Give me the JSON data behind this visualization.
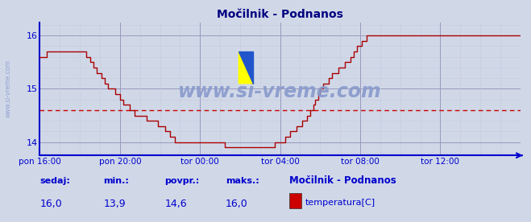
{
  "title": "Močilnik - Podnanos",
  "bg_color": "#d0d8e8",
  "plot_bg_color": "#d0d8e8",
  "line_color": "#aa0000",
  "avg_line_color": "#cc0000",
  "axis_color": "#0000cc",
  "grid_color_major": "#9999bb",
  "grid_color_minor": "#bbbbcc",
  "title_color": "#000080",
  "ylim": [
    13.75,
    16.25
  ],
  "yticks": [
    14,
    15,
    16
  ],
  "avg_value": 14.6,
  "sedaj": "16,0",
  "min_val": "13,9",
  "povpr": "14,6",
  "maks": "16,0",
  "station": "Močilnik - Podnanos",
  "legend_label": "temperatura[C]",
  "legend_color": "#cc0000",
  "watermark": "www.si-vreme.com",
  "watermark_color": "#8899cc",
  "x_tick_labels": [
    "pon 16:00",
    "pon 20:00",
    "tor 00:00",
    "tor 04:00",
    "tor 08:00",
    "tor 12:00"
  ],
  "x_tick_positions": [
    0,
    48,
    96,
    144,
    192,
    240
  ],
  "total_points": 289,
  "temperature_data": [
    15.6,
    15.6,
    15.6,
    15.6,
    15.7,
    15.7,
    15.7,
    15.7,
    15.7,
    15.7,
    15.7,
    15.7,
    15.7,
    15.7,
    15.7,
    15.7,
    15.7,
    15.7,
    15.7,
    15.7,
    15.7,
    15.7,
    15.7,
    15.7,
    15.7,
    15.7,
    15.7,
    15.7,
    15.6,
    15.6,
    15.5,
    15.5,
    15.4,
    15.4,
    15.3,
    15.3,
    15.3,
    15.2,
    15.2,
    15.1,
    15.1,
    15.0,
    15.0,
    15.0,
    15.0,
    14.9,
    14.9,
    14.9,
    14.8,
    14.8,
    14.7,
    14.7,
    14.7,
    14.7,
    14.6,
    14.6,
    14.6,
    14.5,
    14.5,
    14.5,
    14.5,
    14.5,
    14.5,
    14.5,
    14.4,
    14.4,
    14.4,
    14.4,
    14.4,
    14.4,
    14.4,
    14.3,
    14.3,
    14.3,
    14.3,
    14.2,
    14.2,
    14.2,
    14.1,
    14.1,
    14.1,
    14.0,
    14.0,
    14.0,
    14.0,
    14.0,
    14.0,
    14.0,
    14.0,
    14.0,
    14.0,
    14.0,
    14.0,
    14.0,
    14.0,
    14.0,
    14.0,
    14.0,
    14.0,
    14.0,
    14.0,
    14.0,
    14.0,
    14.0,
    14.0,
    14.0,
    14.0,
    14.0,
    14.0,
    14.0,
    14.0,
    13.9,
    13.9,
    13.9,
    13.9,
    13.9,
    13.9,
    13.9,
    13.9,
    13.9,
    13.9,
    13.9,
    13.9,
    13.9,
    13.9,
    13.9,
    13.9,
    13.9,
    13.9,
    13.9,
    13.9,
    13.9,
    13.9,
    13.9,
    13.9,
    13.9,
    13.9,
    13.9,
    13.9,
    13.9,
    13.9,
    14.0,
    14.0,
    14.0,
    14.0,
    14.0,
    14.0,
    14.1,
    14.1,
    14.1,
    14.2,
    14.2,
    14.2,
    14.2,
    14.3,
    14.3,
    14.3,
    14.4,
    14.4,
    14.4,
    14.5,
    14.5,
    14.6,
    14.6,
    14.7,
    14.8,
    14.8,
    14.9,
    15.0,
    15.0,
    15.1,
    15.1,
    15.1,
    15.2,
    15.2,
    15.3,
    15.3,
    15.3,
    15.3,
    15.4,
    15.4,
    15.4,
    15.4,
    15.5,
    15.5,
    15.5,
    15.6,
    15.6,
    15.7,
    15.7,
    15.8,
    15.8,
    15.8,
    15.9,
    15.9,
    15.9,
    16.0,
    16.0,
    16.0,
    16.0,
    16.0,
    16.0,
    16.0,
    16.0,
    16.0,
    16.0,
    16.0,
    16.0,
    16.0,
    16.0,
    16.0,
    16.0,
    16.0,
    16.0,
    16.0,
    16.0,
    16.0,
    16.0,
    16.0,
    16.0,
    16.0,
    16.0,
    16.0,
    16.0,
    16.0,
    16.0,
    16.0,
    16.0,
    16.0,
    16.0,
    16.0,
    16.0,
    16.0,
    16.0,
    16.0,
    16.0,
    16.0,
    16.0,
    16.0,
    16.0,
    16.0,
    16.0,
    16.0,
    16.0,
    16.0,
    16.0,
    16.0,
    16.0,
    16.0,
    16.0,
    16.0,
    16.0,
    16.0,
    16.0,
    16.0,
    16.0,
    16.0,
    16.0,
    16.0,
    16.0,
    16.0,
    16.0,
    16.0,
    16.0,
    16.0,
    16.0,
    16.0,
    16.0,
    16.0,
    16.0,
    16.0,
    16.0,
    16.0,
    16.0,
    16.0,
    16.0,
    16.0,
    16.0,
    16.0,
    16.0,
    16.0,
    16.0,
    16.0,
    16.0,
    16.0,
    16.0,
    16.0,
    16.0,
    16.0,
    16.0,
    16.0,
    16.0,
    16.0,
    16.0,
    16.0,
    16.0,
    16.0,
    16.0
  ]
}
